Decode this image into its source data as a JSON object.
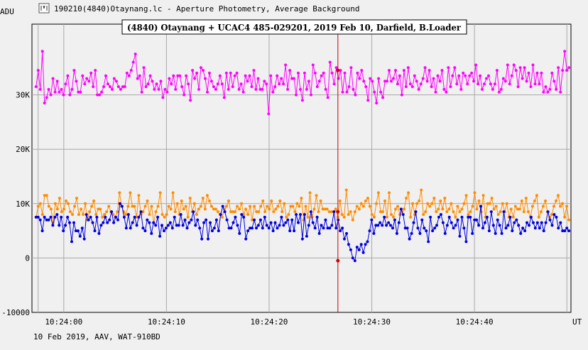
{
  "window": {
    "title": "190210(4840)Otaynang.lc - Aperture Photometry, Average Background",
    "icon": "lightcurve-app-icon"
  },
  "chart_data": {
    "type": "line",
    "title": "(4840) Otaynang + UCAC4 485-029201, 2019 Feb 10, Darfield, B.Loader",
    "ylabel": "ADU",
    "xlabel": "UT",
    "footer": "10 Feb 2019, AAV, WAT-910BD",
    "ylim": [
      -10000,
      43000
    ],
    "xlim": [
      "10:23:56.9",
      "10:24:49.4"
    ],
    "ytick_values": [
      -10000,
      0,
      10000,
      20000,
      30000
    ],
    "ytick_labels": [
      "-10000",
      "0",
      "10K",
      "20K",
      "30K"
    ],
    "xtick_values": [
      "10:24:00",
      "10:24:10",
      "10:24:20",
      "10:24:30",
      "10:24:40"
    ],
    "xtick_labels": [
      "10:24:00",
      "10:24:10",
      "10:24:20",
      "10:24:30",
      "10:24:40"
    ],
    "grid": true,
    "marker_time": "10:24:26.7",
    "colors": {
      "magenta": "#ff00ff",
      "orange": "#ff8c00",
      "blue": "#0000e0",
      "marker": "#cc0000",
      "grid": "#a8a8a8"
    },
    "series": [
      {
        "color": "magenta",
        "values": [
          31500,
          34500,
          31000,
          38000,
          28500,
          29500,
          31000,
          30000,
          33000,
          30500,
          32500,
          30500,
          31000,
          30000,
          32000,
          33500,
          30000,
          31000,
          34500,
          32500,
          30500,
          30500,
          33500,
          32000,
          33000,
          32500,
          34000,
          31500,
          34500,
          30000,
          30000,
          30500,
          31500,
          33500,
          32000,
          31500,
          31000,
          33000,
          32500,
          31500,
          31000,
          31500,
          31500,
          34000,
          33500,
          34500,
          36000,
          37500,
          33000,
          33500,
          30500,
          35000,
          31500,
          32000,
          33500,
          32500,
          31000,
          32000,
          31000,
          32500,
          29500,
          31000,
          30500,
          33000,
          32000,
          33500,
          31000,
          33500,
          33500,
          31500,
          30000,
          33500,
          32000,
          29000,
          34500,
          33000,
          34000,
          31000,
          35000,
          34500,
          33000,
          30500,
          34000,
          32500,
          31500,
          31000,
          32000,
          33500,
          32000,
          29500,
          34000,
          31000,
          34000,
          31500,
          33500,
          34000,
          31000,
          32000,
          30500,
          33500,
          32500,
          33500,
          31500,
          34500,
          31000,
          33000,
          31000,
          31000,
          32500,
          32000,
          26500,
          33500,
          30500,
          31500,
          33500,
          32000,
          33000,
          32000,
          35500,
          31000,
          34500,
          33000,
          33000,
          30000,
          34000,
          31000,
          29000,
          34000,
          31000,
          32500,
          30000,
          35500,
          34000,
          31500,
          32500,
          33500,
          34000,
          31000,
          29500,
          36000,
          34000,
          32000,
          35000,
          33000,
          34500,
          30500,
          34000,
          30500,
          31500,
          35000,
          31000,
          30000,
          34000,
          33000,
          34500,
          32500,
          31500,
          29000,
          33000,
          32500,
          30500,
          28500,
          33000,
          30500,
          29500,
          32500,
          32500,
          34500,
          32500,
          33000,
          34500,
          32000,
          33500,
          30000,
          34500,
          31500,
          35000,
          32000,
          31500,
          33500,
          32500,
          31000,
          32000,
          33000,
          35000,
          32500,
          34500,
          31500,
          33000,
          30500,
          33500,
          32500,
          34500,
          31000,
          30500,
          35000,
          31500,
          33500,
          35000,
          32000,
          33500,
          31000,
          34000,
          33500,
          32000,
          33500,
          34000,
          32500,
          35500,
          32000,
          33500,
          31000,
          32000,
          33000,
          33500,
          32000,
          31000,
          32000,
          34500,
          30500,
          31000,
          33000,
          32500,
          35500,
          32000,
          33500,
          35500,
          34500,
          31500,
          35000,
          33000,
          35000,
          32500,
          34000,
          31500,
          35500,
          32000,
          34000,
          32000,
          34000,
          30500,
          31500,
          30500,
          31000,
          34000,
          32500,
          31000,
          35000,
          30500,
          34500,
          38000,
          34500,
          35000
        ],
        "marker_value": 34500
      },
      {
        "color": "orange",
        "values": [
          7500,
          9500,
          10000,
          8000,
          11500,
          11500,
          9500,
          9000,
          6500,
          10000,
          9000,
          11000,
          8500,
          9000,
          10500,
          10000,
          8500,
          8000,
          9500,
          11000,
          8000,
          9000,
          8000,
          10000,
          7000,
          8500,
          9500,
          10500,
          8000,
          9000,
          9000,
          7500,
          8000,
          8500,
          9500,
          8500,
          8000,
          7500,
          8500,
          12000,
          9500,
          8500,
          8000,
          9500,
          12000,
          9500,
          9500,
          7500,
          11500,
          8000,
          8500,
          9500,
          10500,
          8000,
          9500,
          6500,
          8500,
          9500,
          12000,
          8000,
          7500,
          8000,
          9500,
          9000,
          12000,
          8500,
          10000,
          8000,
          10500,
          9000,
          9500,
          7500,
          11000,
          8500,
          10000,
          8000,
          9000,
          9500,
          11000,
          9000,
          11500,
          10500,
          9500,
          9000,
          9000,
          8500,
          8000,
          7500,
          9000,
          9500,
          10500,
          8500,
          8500,
          8500,
          9500,
          9000,
          10000,
          8000,
          9000,
          8000,
          9500,
          7000,
          9500,
          8500,
          8500,
          9500,
          10500,
          8500,
          9500,
          9000,
          10500,
          8500,
          9000,
          9500,
          10500,
          8500,
          10000,
          7500,
          8000,
          9500,
          9500,
          8500,
          10000,
          9500,
          11000,
          7000,
          9500,
          7500,
          12000,
          7500,
          9000,
          11500,
          8500,
          10500,
          9000,
          9000,
          9000,
          8500,
          8500,
          8500,
          9000,
          7500,
          10500,
          8000,
          7500,
          12500,
          8000,
          8500,
          7000,
          8500,
          9500,
          9000,
          10000,
          9500,
          10500,
          11000,
          9500,
          8000,
          7500,
          10000,
          12000,
          8500,
          8500,
          10500,
          7500,
          12000,
          8000,
          7500,
          9000,
          9500,
          8000,
          8500,
          9000,
          11000,
          12000,
          7500,
          10000,
          8000,
          10000,
          10500,
          12500,
          8000,
          8500,
          10000,
          9500,
          10000,
          11000,
          8500,
          9000,
          10500,
          9000,
          11000,
          8500,
          9000,
          10000,
          8500,
          7500,
          9500,
          8500,
          9000,
          10000,
          11500,
          8000,
          8500,
          9500,
          12000,
          9000,
          10500,
          8500,
          11500,
          7500,
          10000,
          10000,
          11000,
          9000,
          9500,
          8000,
          8500,
          10000,
          8500,
          10000,
          7500,
          9000,
          7500,
          9500,
          9000,
          9000,
          10500,
          8500,
          11000,
          8500,
          7500,
          9500,
          10500,
          11500,
          7500,
          8500,
          9500,
          10500,
          8500,
          7500,
          8000,
          9500,
          10500,
          11500,
          9500,
          10000,
          7500,
          9500,
          7000
        ],
        "marker_value": 8500
      },
      {
        "color": "blue",
        "values": [
          7500,
          7500,
          7000,
          5000,
          7500,
          7000,
          7000,
          7500,
          6000,
          7500,
          8000,
          6000,
          7500,
          5000,
          6000,
          7500,
          6500,
          3000,
          6500,
          5000,
          5000,
          4000,
          5500,
          3500,
          8000,
          7000,
          7500,
          6500,
          5000,
          7500,
          4500,
          6000,
          6500,
          7500,
          6500,
          7000,
          8500,
          6500,
          7500,
          7000,
          10000,
          9500,
          7500,
          5500,
          8000,
          5500,
          6500,
          7500,
          6000,
          7500,
          8500,
          5500,
          5000,
          7000,
          6500,
          4500,
          6500,
          6000,
          7500,
          4000,
          6000,
          5000,
          5500,
          6000,
          6500,
          5500,
          7500,
          6000,
          6000,
          8000,
          6000,
          7000,
          5500,
          6500,
          7000,
          8500,
          6000,
          7000,
          5500,
          3500,
          6500,
          7000,
          3500,
          6500,
          5000,
          5500,
          7000,
          5000,
          8000,
          9500,
          8500,
          7000,
          5500,
          5500,
          6500,
          7500,
          6000,
          4500,
          8000,
          7500,
          3500,
          5000,
          5500,
          5500,
          7000,
          5500,
          6000,
          7000,
          5500,
          7500,
          6000,
          5500,
          6500,
          5000,
          6500,
          5500,
          6000,
          7500,
          6000,
          6500,
          7000,
          5000,
          7000,
          5000,
          8000,
          6500,
          8000,
          3500,
          8000,
          4000,
          6000,
          8500,
          6500,
          5500,
          7500,
          4500,
          6000,
          5500,
          7000,
          5500,
          5500,
          6000,
          8500,
          5500,
          7000,
          5000,
          5500,
          3500,
          4500,
          2500,
          1500,
          0,
          -500,
          2000,
          1500,
          2500,
          1000,
          2500,
          3000,
          5000,
          7000,
          4500,
          6000,
          6000,
          6500,
          6000,
          7500,
          6000,
          6500,
          6000,
          5500,
          7000,
          4500,
          6500,
          9000,
          8000,
          5500,
          5500,
          3500,
          4500,
          6500,
          8500,
          5500,
          4500,
          7000,
          5500,
          5000,
          3000,
          7500,
          5000,
          5500,
          6000,
          7500,
          8000,
          6500,
          4500,
          6000,
          7500,
          6500,
          5500,
          6000,
          7000,
          4000,
          7500,
          5500,
          3000,
          7500,
          7500,
          4500,
          7000,
          7000,
          6000,
          9500,
          5500,
          6500,
          7500,
          5000,
          8500,
          6000,
          4500,
          7000,
          6000,
          4500,
          8500,
          5500,
          6000,
          7500,
          5000,
          6500,
          7000,
          6000,
          4500,
          5500,
          5000,
          6500,
          6000,
          7500,
          6500,
          5500,
          6500,
          5500,
          6500,
          5000,
          6500,
          8500,
          7000,
          6000,
          8000,
          7500,
          5500,
          6500,
          5000,
          5000,
          5500,
          5000
        ],
        "marker_value": -500
      }
    ]
  }
}
